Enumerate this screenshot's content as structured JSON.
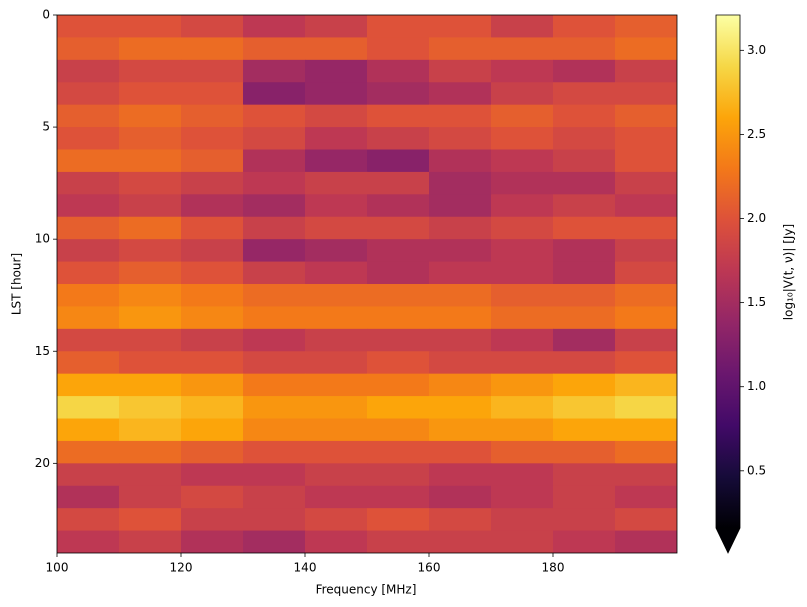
{
  "chart_data": {
    "type": "heatmap",
    "xlabel": "Frequency [MHz]",
    "ylabel": "LST [hour]",
    "colorbar_label": "log₁₀|V(t, ν)| [Jy]",
    "colormap": "inferno",
    "colorbar_extend": "min",
    "xlim": [
      100,
      200
    ],
    "ylim": [
      24,
      0
    ],
    "xticks": [
      100,
      120,
      140,
      160,
      180
    ],
    "yticks": [
      0,
      5,
      10,
      15,
      20
    ],
    "clim": [
      0.16,
      3.21
    ],
    "cticks": [
      {
        "value": 0.5,
        "label": "0.5"
      },
      {
        "value": 1,
        "label": "1.0"
      },
      {
        "value": 1.5,
        "label": "1.5"
      },
      {
        "value": 2,
        "label": "2.0"
      },
      {
        "value": 2.5,
        "label": "2.5"
      },
      {
        "value": 3,
        "label": "3.0"
      }
    ],
    "x": [
      105,
      115,
      125,
      135,
      145,
      155,
      165,
      175,
      185,
      195
    ],
    "y": [
      0.5,
      1.5,
      2.5,
      3.5,
      4.5,
      5.5,
      6.5,
      7.5,
      8.5,
      9.5,
      10.5,
      11.5,
      12.5,
      13.5,
      14.5,
      15.5,
      16.5,
      17.5,
      18.5,
      19.5,
      20.5,
      21.5,
      22.5,
      23.5
    ],
    "values": [
      [
        2.0,
        2.0,
        1.9,
        1.7,
        1.8,
        2.0,
        2.0,
        1.8,
        2.0,
        2.1
      ],
      [
        2.1,
        2.2,
        2.2,
        2.1,
        2.1,
        2.0,
        2.1,
        2.1,
        2.1,
        2.2
      ],
      [
        1.8,
        1.9,
        1.9,
        1.5,
        1.4,
        1.6,
        1.8,
        1.7,
        1.6,
        1.8
      ],
      [
        1.9,
        2.0,
        2.0,
        1.3,
        1.4,
        1.5,
        1.6,
        1.8,
        1.9,
        1.9
      ],
      [
        2.1,
        2.2,
        2.1,
        2.0,
        1.9,
        2.0,
        2.0,
        2.1,
        2.0,
        2.1
      ],
      [
        2.0,
        2.1,
        2.0,
        1.9,
        1.7,
        1.8,
        1.9,
        2.0,
        1.9,
        2.0
      ],
      [
        2.2,
        2.2,
        2.1,
        1.6,
        1.4,
        1.3,
        1.6,
        1.7,
        1.8,
        2.0
      ],
      [
        1.8,
        1.9,
        1.8,
        1.7,
        1.8,
        1.8,
        1.5,
        1.6,
        1.6,
        1.8
      ],
      [
        1.7,
        1.8,
        1.6,
        1.5,
        1.7,
        1.6,
        1.5,
        1.7,
        1.8,
        1.7
      ],
      [
        2.1,
        2.2,
        2.0,
        1.8,
        1.9,
        1.9,
        1.8,
        1.9,
        2.0,
        2.0
      ],
      [
        1.8,
        1.9,
        1.8,
        1.4,
        1.5,
        1.6,
        1.6,
        1.7,
        1.6,
        1.8
      ],
      [
        2.0,
        2.1,
        2.0,
        1.8,
        1.7,
        1.6,
        1.7,
        1.7,
        1.6,
        1.9
      ],
      [
        2.3,
        2.4,
        2.3,
        2.2,
        2.2,
        2.2,
        2.2,
        2.1,
        2.1,
        2.2
      ],
      [
        2.4,
        2.5,
        2.4,
        2.3,
        2.3,
        2.3,
        2.3,
        2.2,
        2.2,
        2.3
      ],
      [
        1.9,
        1.9,
        1.8,
        1.7,
        1.8,
        1.8,
        1.8,
        1.7,
        1.5,
        1.8
      ],
      [
        2.1,
        2.0,
        2.0,
        1.9,
        1.9,
        2.0,
        1.9,
        1.9,
        1.9,
        2.0
      ],
      [
        2.6,
        2.6,
        2.5,
        2.3,
        2.3,
        2.3,
        2.4,
        2.5,
        2.6,
        2.7
      ],
      [
        2.9,
        2.8,
        2.7,
        2.5,
        2.5,
        2.6,
        2.6,
        2.7,
        2.8,
        2.9
      ],
      [
        2.6,
        2.7,
        2.6,
        2.4,
        2.4,
        2.4,
        2.5,
        2.5,
        2.6,
        2.6
      ],
      [
        2.2,
        2.2,
        2.1,
        2.0,
        2.0,
        2.0,
        2.0,
        2.1,
        2.1,
        2.2
      ],
      [
        1.8,
        1.8,
        1.7,
        1.7,
        1.8,
        1.8,
        1.7,
        1.7,
        1.8,
        1.8
      ],
      [
        1.6,
        1.8,
        1.9,
        1.8,
        1.7,
        1.7,
        1.6,
        1.7,
        1.8,
        1.7
      ],
      [
        1.9,
        2.0,
        1.8,
        1.8,
        1.9,
        2.0,
        1.9,
        1.8,
        1.8,
        1.9
      ],
      [
        1.7,
        1.8,
        1.6,
        1.5,
        1.7,
        1.8,
        1.8,
        1.8,
        1.7,
        1.6
      ]
    ]
  }
}
